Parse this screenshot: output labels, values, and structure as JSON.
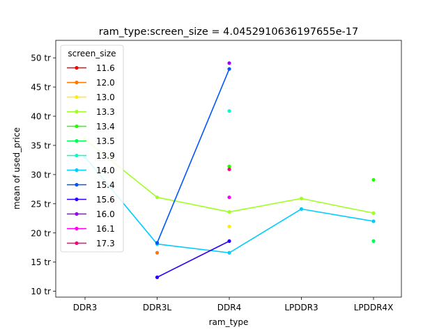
{
  "chart_data": {
    "type": "line",
    "title": "ram_type:screen_size = 4.0452910636197655e-17",
    "xlabel": "ram_type",
    "ylabel": "mean of used_price",
    "categories": [
      "DDR3",
      "DDR3L",
      "DDR4",
      "LPDDR3",
      "LPDDR4X"
    ],
    "ylim": [
      9,
      53
    ],
    "yticks": [
      10,
      15,
      20,
      25,
      30,
      35,
      40,
      45,
      50
    ],
    "ytick_labels": [
      "10 tr",
      "15 tr",
      "20 tr",
      "25 tr",
      "30 tr",
      "35 tr",
      "40 tr",
      "45 tr",
      "50 tr"
    ],
    "grid": false,
    "legend": {
      "title": "screen_size",
      "placement": "upper-left"
    },
    "series": [
      {
        "name": "11.6",
        "color": "#ff0000",
        "values": [
          null,
          null,
          null,
          null,
          null
        ]
      },
      {
        "name": "12.0",
        "color": "#ff7700",
        "values": [
          null,
          16.6,
          null,
          null,
          null
        ]
      },
      {
        "name": "13.0",
        "color": "#ffee00",
        "values": [
          null,
          null,
          21.1,
          null,
          null
        ]
      },
      {
        "name": "13.3",
        "color": "#a0ff20",
        "values": [
          36.0,
          26.1,
          23.6,
          25.9,
          23.4
        ]
      },
      {
        "name": "13.4",
        "color": "#22ff00",
        "values": [
          null,
          null,
          31.4,
          null,
          29.1
        ]
      },
      {
        "name": "13.5",
        "color": "#00ff55",
        "values": [
          null,
          null,
          null,
          null,
          18.6
        ]
      },
      {
        "name": "13.9",
        "color": "#00ffcc",
        "values": [
          null,
          null,
          40.9,
          null,
          null
        ]
      },
      {
        "name": "14.0",
        "color": "#00ccff",
        "values": [
          33.0,
          18.1,
          16.6,
          24.1,
          22.0
        ]
      },
      {
        "name": "15.4",
        "color": "#0055ff",
        "values": [
          null,
          18.3,
          48.1,
          null,
          null
        ]
      },
      {
        "name": "15.6",
        "color": "#2a00ff",
        "values": [
          null,
          12.4,
          18.6,
          null,
          null
        ]
      },
      {
        "name": "16.0",
        "color": "#9900ff",
        "values": [
          null,
          null,
          49.1,
          null,
          null
        ]
      },
      {
        "name": "16.1",
        "color": "#ff00ee",
        "values": [
          null,
          null,
          26.1,
          null,
          null
        ]
      },
      {
        "name": "17.3",
        "color": "#ff0077",
        "values": [
          null,
          null,
          30.9,
          null,
          null
        ]
      }
    ]
  }
}
